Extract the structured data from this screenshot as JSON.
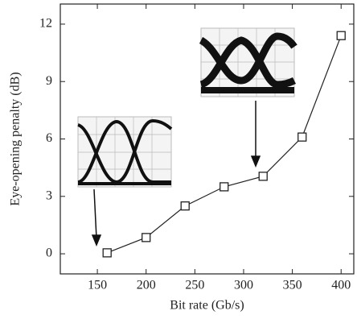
{
  "chart_data": {
    "type": "line",
    "x_label": "Bit rate (Gb/s)",
    "y_label": "Eye-opening penalty (dB)",
    "x": [
      160,
      200,
      240,
      280,
      320,
      360,
      400
    ],
    "series": [
      {
        "values": [
          0.05,
          0.85,
          2.5,
          3.5,
          4.05,
          6.1,
          11.4
        ],
        "color": "#222222"
      }
    ],
    "xlim": [
      112,
      413
    ],
    "ylim": [
      -1.05,
      13.05
    ],
    "xticks": [
      150,
      200,
      250,
      300,
      350,
      400
    ],
    "yticks": [
      0,
      3,
      6,
      9,
      12
    ],
    "marker": "square"
  }
}
